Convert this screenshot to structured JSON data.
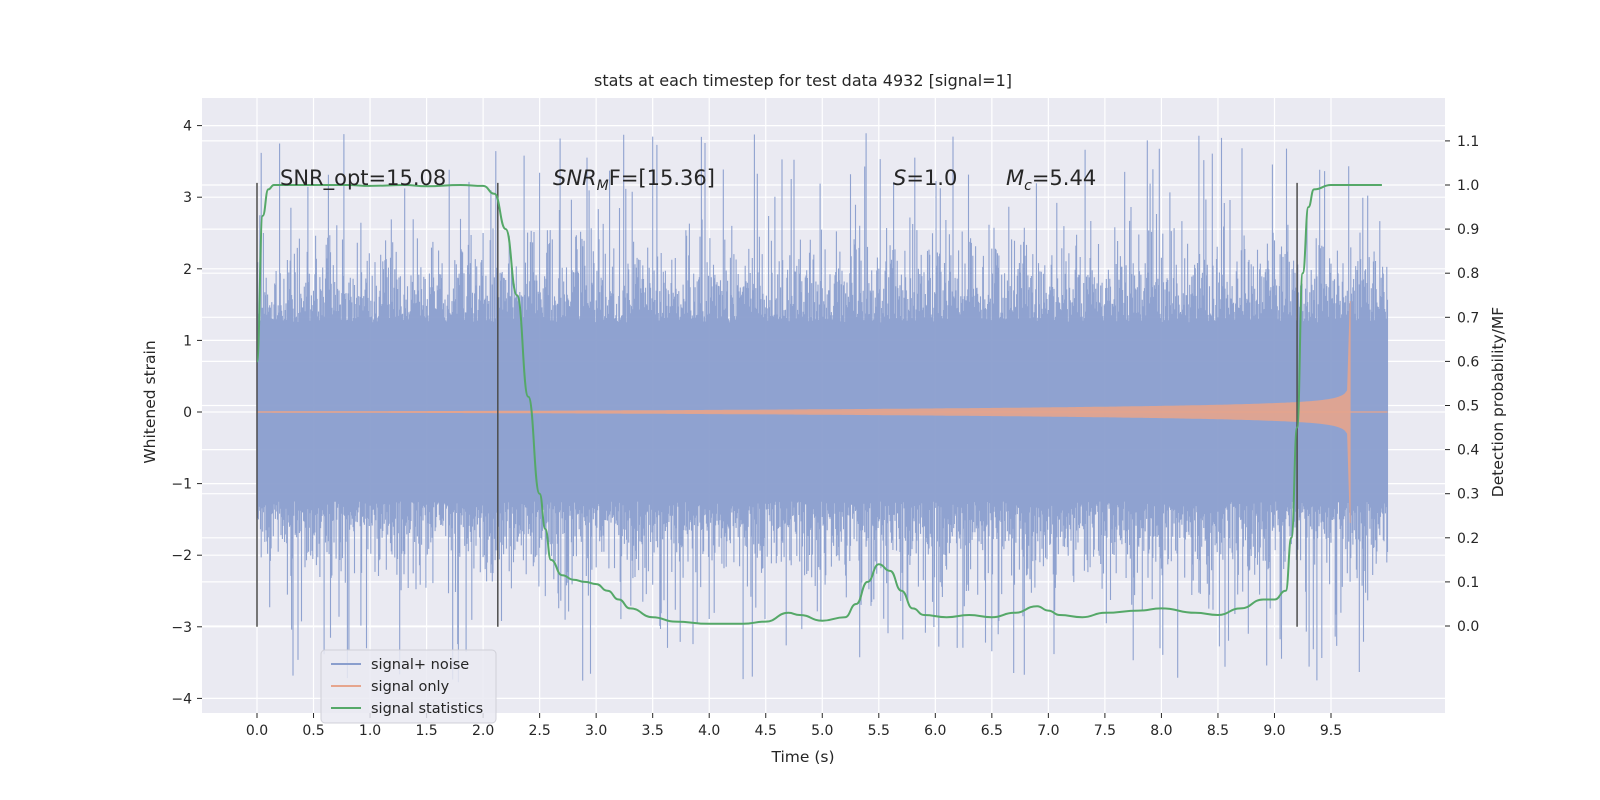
{
  "chart_data": {
    "type": "line",
    "title": "stats at each timestep for test data 4932 [signal=1]",
    "xlabel": "Time (s)",
    "ylabel": "Whitened strain",
    "ylabel_right": "Detection probability/MF",
    "xlim": [
      -0.5,
      10.5
    ],
    "ylim": [
      -4.2,
      4.4
    ],
    "ylim_right": [
      -0.2,
      1.2
    ],
    "x_ticks": [
      0.0,
      0.5,
      1.0,
      1.5,
      2.0,
      2.5,
      3.0,
      3.5,
      4.0,
      4.5,
      5.0,
      5.5,
      6.0,
      6.5,
      7.0,
      7.5,
      8.0,
      8.5,
      9.0,
      9.5
    ],
    "x_tick_labels": [
      "0.0",
      "0.5",
      "1.0",
      "1.5",
      "2.0",
      "2.5",
      "3.0",
      "3.5",
      "4.0",
      "4.5",
      "5.0",
      "5.5",
      "6.0",
      "6.5",
      "7.0",
      "7.5",
      "8.0",
      "8.5",
      "9.0",
      "9.5"
    ],
    "y_ticks": [
      -4,
      -3,
      -2,
      -1,
      0,
      1,
      2,
      3,
      4
    ],
    "y_tick_labels": [
      "−4",
      "−3",
      "−2",
      "−1",
      "0",
      "1",
      "2",
      "3",
      "4"
    ],
    "y_right_ticks": [
      0.0,
      0.1,
      0.2,
      0.3,
      0.4,
      0.5,
      0.6,
      0.7,
      0.8,
      0.9,
      1.0,
      1.1
    ],
    "y_right_tick_labels": [
      "0.0",
      "0.1",
      "0.2",
      "0.3",
      "0.4",
      "0.5",
      "0.6",
      "0.7",
      "0.8",
      "0.9",
      "1.0",
      "1.1"
    ],
    "grid": true,
    "legend_position": "lower-left",
    "annotations": {
      "snr_opt": "SNR_opt=15.08",
      "snr_mf_base": "SNR",
      "snr_mf_sub": "M",
      "snr_mf_rest": "F=[15.36]",
      "s_var": "S",
      "s_rest": "=1.0",
      "mc_var": "M",
      "mc_sub": "c",
      "mc_rest": "=5.44"
    },
    "vlines_x": [
      0.0,
      2.13,
      9.2
    ],
    "vline_range": [
      -3.0,
      3.2
    ],
    "series": [
      {
        "name": "signal+ noise",
        "color": "#8a9ecd",
        "x_range": [
          0.0,
          10.0
        ],
        "sample_rate_hz": 2048,
        "y_range": [
          -3.9,
          4.05
        ]
      },
      {
        "name": "signal only",
        "color": "#e6a58d",
        "x_range": [
          0.0,
          9.67
        ],
        "max_amplitude": 1.55,
        "min_value": -1.55
      },
      {
        "name": "signal statistics",
        "color": "#55a868",
        "axis": "right",
        "x": [
          0.0,
          0.05,
          0.1,
          0.15,
          0.3,
          0.5,
          0.8,
          1.0,
          1.3,
          1.5,
          1.8,
          2.0,
          2.1,
          2.2,
          2.3,
          2.4,
          2.5,
          2.55,
          2.6,
          2.7,
          2.8,
          2.9,
          3.0,
          3.1,
          3.2,
          3.3,
          3.5,
          3.7,
          4.0,
          4.3,
          4.5,
          4.7,
          4.8,
          5.0,
          5.2,
          5.3,
          5.4,
          5.5,
          5.6,
          5.7,
          5.8,
          5.9,
          6.1,
          6.3,
          6.5,
          6.7,
          6.9,
          7.0,
          7.1,
          7.3,
          7.5,
          7.8,
          8.0,
          8.3,
          8.5,
          8.7,
          8.9,
          9.0,
          9.1,
          9.15,
          9.2,
          9.25,
          9.3,
          9.35,
          9.5,
          9.7,
          9.95
        ],
        "values": [
          0.6,
          0.93,
          0.99,
          1.0,
          1.0,
          1.0,
          1.0,
          0.998,
          1.0,
          0.997,
          1.0,
          0.998,
          0.98,
          0.9,
          0.75,
          0.52,
          0.3,
          0.22,
          0.15,
          0.115,
          0.105,
          0.1,
          0.095,
          0.08,
          0.06,
          0.04,
          0.02,
          0.01,
          0.005,
          0.005,
          0.01,
          0.03,
          0.025,
          0.012,
          0.02,
          0.05,
          0.1,
          0.14,
          0.125,
          0.08,
          0.04,
          0.025,
          0.02,
          0.025,
          0.02,
          0.03,
          0.045,
          0.035,
          0.025,
          0.02,
          0.03,
          0.035,
          0.04,
          0.03,
          0.025,
          0.04,
          0.06,
          0.06,
          0.08,
          0.2,
          0.45,
          0.8,
          0.95,
          0.99,
          1.0,
          1.0,
          1.0
        ]
      }
    ]
  },
  "colors": {
    "plot_background": "#eaeaf2",
    "grid": "#ffffff",
    "vline": "#4d4d4d"
  }
}
